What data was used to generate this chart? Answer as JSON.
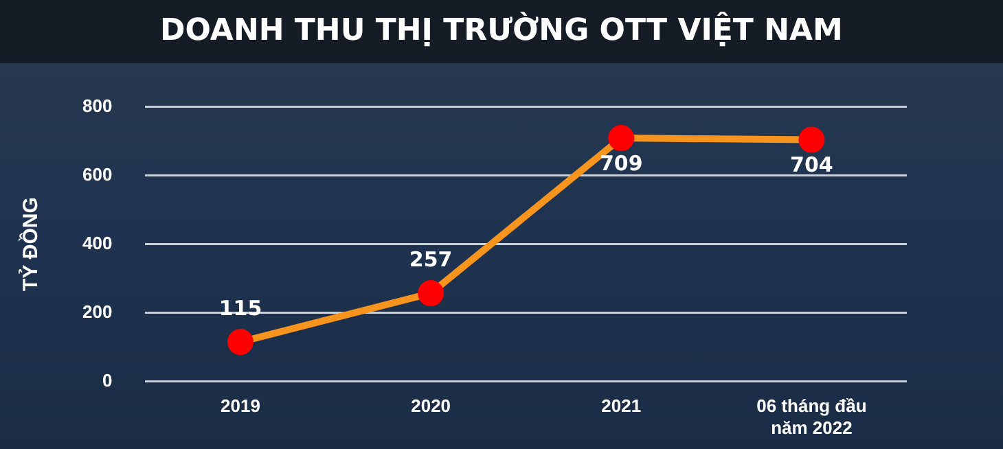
{
  "chart_data": {
    "type": "line",
    "title": "DOANH THU THỊ TRƯỜNG OTT VIỆT NAM",
    "ylabel": "TỶ ĐỒNG",
    "categories": [
      "2019",
      "2020",
      "2021",
      "06 tháng đầu\nnăm 2022"
    ],
    "series": [
      {
        "color": "#f7941d",
        "colors": [
          "#ff0000",
          "#ff0000",
          "#ff0000",
          "#ff0000"
        ],
        "values": [
          115,
          257,
          709,
          704
        ]
      }
    ],
    "marker": "circle",
    "data_labels": true,
    "ylim": [
      0,
      800
    ],
    "yticks": [
      0,
      200,
      400,
      600,
      800
    ],
    "grid": "y",
    "legend": false
  }
}
